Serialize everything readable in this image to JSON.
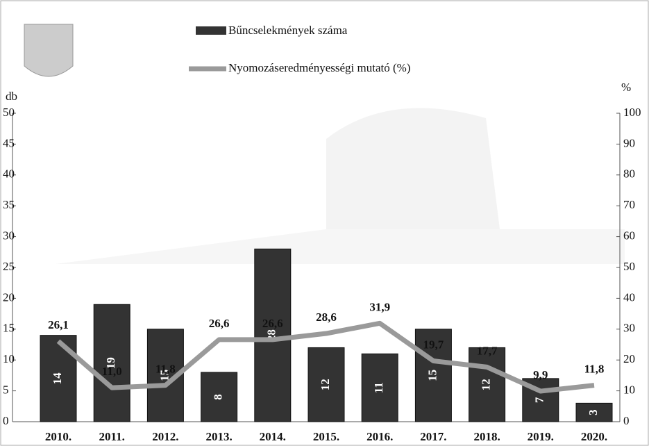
{
  "chart_data": {
    "type": "bar",
    "y_label": "db",
    "y2_label": "%",
    "categories": [
      "2010.",
      "2011.",
      "2012.",
      "2013.",
      "2014.",
      "2015.",
      "2016.",
      "2017.",
      "2018.",
      "2019.",
      "2020."
    ],
    "series": [
      {
        "name": "Bűncselekmények száma",
        "type": "bar",
        "color": "#333333",
        "values": [
          14,
          19,
          15,
          8,
          28,
          12,
          11,
          15,
          12,
          7,
          3
        ]
      },
      {
        "name": "Nyomozáseredményességi mutató (%)",
        "type": "line",
        "axis": "y2",
        "color": "#9a9a9a",
        "values": [
          26.1,
          11.0,
          11.8,
          26.6,
          26.6,
          28.6,
          31.9,
          19.7,
          17.7,
          9.9,
          11.8
        ],
        "value_labels": [
          "26,1",
          "11,0",
          "11,8",
          "26,6",
          "26,6",
          "28,6",
          "31,9",
          "19,7",
          "17,7",
          "9,9",
          "11,8"
        ]
      }
    ],
    "ylim": [
      0,
      50
    ],
    "yticks": [
      0,
      5,
      10,
      15,
      20,
      25,
      30,
      35,
      40,
      45,
      50
    ],
    "y2lim": [
      0,
      100
    ],
    "y2ticks": [
      0,
      10,
      20,
      30,
      40,
      50,
      60,
      70,
      80,
      90,
      100
    ]
  }
}
